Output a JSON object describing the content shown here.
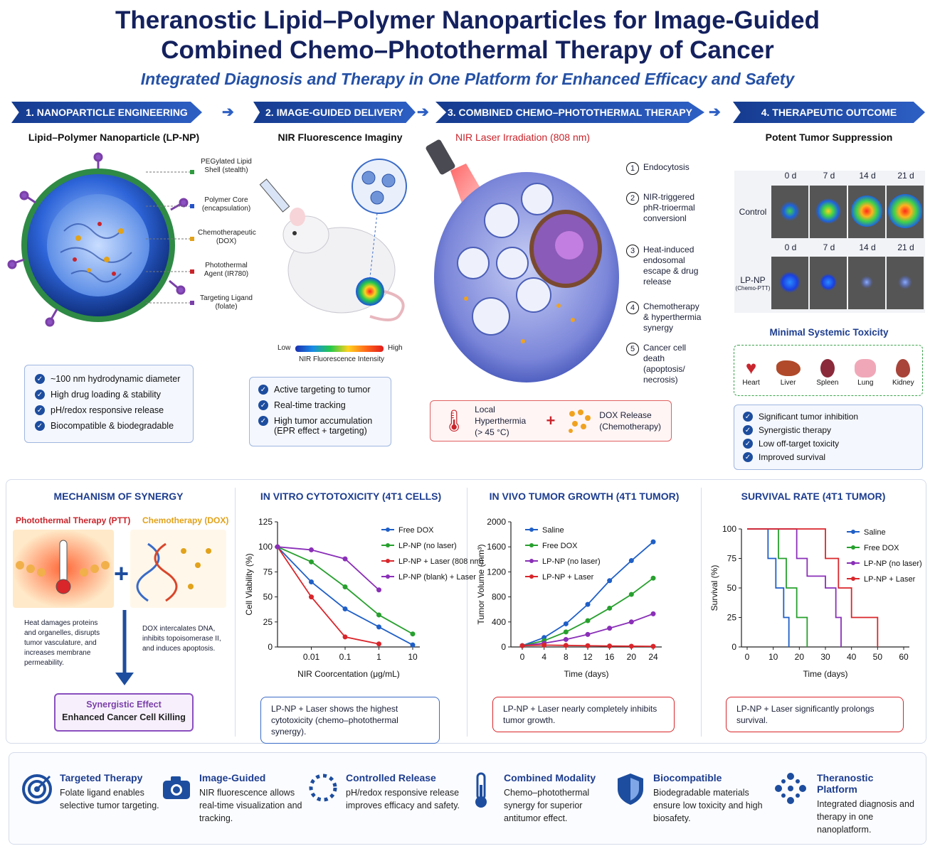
{
  "header": {
    "title_line1": "Theranostic Lipid–Polymer Nanoparticles for Image-Guided",
    "title_line2": "Combined Chemo–Photothermal Therapy of Cancer",
    "subtitle": "Integrated Diagnosis and Therapy in One Platform for Enhanced Efficacy and Safety"
  },
  "steps": [
    {
      "label": "1. NANOPARTICLE ENGINEERING"
    },
    {
      "label": "2. IMAGE-GUIDED DELIVERY"
    },
    {
      "label": "3. COMBINED CHEMO–PHOTOTHERMAL THERAPY"
    },
    {
      "label": "4. THERAPEUTIC OUTCOME"
    }
  ],
  "engineering": {
    "heading": "Lipid–Polymer Nanoparticle (LP-NP)",
    "labels": [
      {
        "text": "PEGylated Lipid Shell (stealth)",
        "color": "#2e9b3e"
      },
      {
        "text": "Polymer Core (encapsulation)",
        "color": "#2452c9"
      },
      {
        "text": "Chemotherapeutic (DOX)",
        "color": "#e2a21a"
      },
      {
        "text": "Photothermal Agent (IR780)",
        "color": "#c9242b"
      },
      {
        "text": "Targeting Ligand (folate)",
        "color": "#7a3fa8"
      }
    ],
    "features": [
      "~100 nm hydrodynamic diameter",
      "High drug loading & stability",
      "pH/redox responsive release",
      "Biocompatible & biodegradable"
    ]
  },
  "delivery": {
    "heading": "NIR Fluorescence Imaginy",
    "scale_low": "Low",
    "scale_high": "High",
    "scale_caption": "NIR Fluorescence Intensity",
    "features": [
      "Active targeting to tumor",
      "Real-time tracking",
      "High tumor accumulation (EPR effect + targeting)"
    ]
  },
  "therapy": {
    "heading": "NIR Laser Irradiation (808 nm)",
    "steps": [
      {
        "num": "1",
        "text": "Endocytosis"
      },
      {
        "num": "2",
        "text": "NIR-triggered phR-trioermal conversionl"
      },
      {
        "num": "3",
        "text": "Heat-induced endosomal escape & drug release"
      },
      {
        "num": "4",
        "text": "Chemotherapy & hyperthermia synergy"
      },
      {
        "num": "5",
        "text": "Cancer cell death (apoptosis/ necrosis)"
      }
    ],
    "hyperthermia_label": "Local Hyperthermia",
    "hyperthermia_temp": "(> 45 °C)",
    "plus": "+",
    "dox_label": "DOX Release",
    "dox_sub": "(Chemotherapy)"
  },
  "outcome": {
    "heading": "Potent Tumor Suppression",
    "days": [
      "0 d",
      "7 d",
      "14 d",
      "21 d"
    ],
    "control_label": "Control",
    "lpnp_label": "LP-NP",
    "lpnp_sub": "(Chemo-PTT)",
    "tox_heading": "Minimal Systemic Toxicity",
    "organs": [
      "Heart",
      "Liver",
      "Spleen",
      "Lung",
      "Kidney"
    ],
    "features": [
      "Significant tumor inhibition",
      "Synergistic therapy",
      "Low off-target toxicity",
      "Improved survival"
    ]
  },
  "mechanism": {
    "heading": "MECHANISM OF SYNERGY",
    "ptt_label": "Photothermal Therapy (PTT)",
    "chemo_label": "Chemotherapy (DOX)",
    "ptt_text": "Heat damages proteins and organelles, disrupts tumor vasculature, and increases membrane permeability.",
    "chemo_text": "DOX intercalates DNA, inhibits topoisomerase II, and induces apoptosis.",
    "synergy_title": "Synergistic Effect",
    "synergy_sub": "Enhanced Cancer Cell Killing"
  },
  "chart_data": [
    {
      "type": "line",
      "title": "IN VITRO CYTOTOXICITY (4T1 CELLS)",
      "xlabel": "NIR Coorcentation (μg/mL)",
      "ylabel": "Cell Viability (%)",
      "xscale": "log",
      "x": [
        0.001,
        0.01,
        0.1,
        1,
        10
      ],
      "x_ticks": [
        "0.01",
        "0.1",
        "1",
        "10"
      ],
      "y_ticks": [
        "0",
        "25",
        "50",
        "75",
        "100",
        "125"
      ],
      "ylim": [
        0,
        125
      ],
      "series": [
        {
          "name": "Free DOX",
          "color": "#1f5fc7",
          "x": [
            0.001,
            0.01,
            0.1,
            1,
            10
          ],
          "values": [
            100,
            65,
            38,
            20,
            2
          ]
        },
        {
          "name": "LP-NP (no laser)",
          "color": "#27a02e",
          "x": [
            0.001,
            0.01,
            0.1,
            1,
            10
          ],
          "values": [
            100,
            85,
            60,
            32,
            13
          ]
        },
        {
          "name": "LP-NP + Laser (808 nm)",
          "color": "#d9262b",
          "x": [
            0.001,
            0.01,
            0.1,
            1
          ],
          "values": [
            100,
            50,
            10,
            3
          ]
        },
        {
          "name": "LP-NP (blank) + Laser",
          "color": "#8a2fb8",
          "x": [
            0.001,
            0.01,
            0.1,
            1
          ],
          "values": [
            100,
            97,
            88,
            57
          ]
        }
      ],
      "note": "LP-NP + Laser shows the highest cytotoxicity (chemo–photothermal synergy)."
    },
    {
      "type": "line",
      "title": "IN VIVO TUMOR GROWTH (4T1 TUMOR)",
      "xlabel": "Time (days)",
      "ylabel": "Tumor Volume (mm³)",
      "x_ticks": [
        "0",
        "4",
        "8",
        "12",
        "16",
        "20",
        "24"
      ],
      "y_ticks": [
        "0",
        "400",
        "800",
        "1200",
        "1600",
        "2000"
      ],
      "xlim": [
        0,
        24
      ],
      "ylim": [
        0,
        2000
      ],
      "series": [
        {
          "name": "Saline",
          "color": "#1f5fc7",
          "x": [
            0,
            4,
            8,
            12,
            16,
            20,
            24
          ],
          "values": [
            20,
            150,
            370,
            680,
            1060,
            1380,
            1680
          ]
        },
        {
          "name": "Free DOX",
          "color": "#27a02e",
          "x": [
            0,
            4,
            8,
            12,
            16,
            20,
            24
          ],
          "values": [
            20,
            100,
            240,
            420,
            620,
            840,
            1100
          ]
        },
        {
          "name": "LP-NP (no laser)",
          "color": "#8a2fb8",
          "x": [
            0,
            4,
            8,
            12,
            16,
            20,
            24
          ],
          "values": [
            20,
            60,
            120,
            200,
            300,
            400,
            530
          ]
        },
        {
          "name": "LP-NP + Laser",
          "color": "#d9262b",
          "x": [
            0,
            4,
            8,
            12,
            16,
            20,
            24
          ],
          "values": [
            20,
            30,
            25,
            20,
            15,
            12,
            10
          ]
        }
      ],
      "note": "LP-NP + Laser nearly completely inhibits tumor growth."
    },
    {
      "type": "line",
      "title": "SURVIVAL RATE (4T1 TUMOR)",
      "xlabel": "Time (days)",
      "ylabel": "Survival (%)",
      "x_ticks": [
        "0",
        "10",
        "20",
        "30",
        "40",
        "50",
        "60"
      ],
      "y_ticks": [
        "0",
        "25",
        "50",
        "75",
        "100"
      ],
      "xlim": [
        0,
        60
      ],
      "ylim": [
        0,
        100
      ],
      "series": [
        {
          "name": "Saline",
          "color": "#1f5fc7",
          "x": [
            0,
            8,
            8,
            11,
            11,
            14,
            14,
            16,
            16
          ],
          "values": [
            100,
            100,
            75,
            75,
            50,
            50,
            25,
            25,
            0
          ]
        },
        {
          "name": "Free DOX",
          "color": "#27a02e",
          "x": [
            0,
            12,
            12,
            15,
            15,
            19,
            19,
            23,
            23
          ],
          "values": [
            100,
            100,
            75,
            75,
            50,
            50,
            25,
            25,
            0
          ]
        },
        {
          "name": "LP-NP (no laser)",
          "color": "#8a2fb8",
          "x": [
            0,
            19,
            19,
            23,
            23,
            30,
            30,
            34,
            34,
            36,
            36
          ],
          "values": [
            100,
            100,
            75,
            75,
            60,
            60,
            50,
            50,
            25,
            25,
            0
          ]
        },
        {
          "name": "LP-NP + Laser",
          "color": "#d9262b",
          "x": [
            0,
            30,
            30,
            35,
            35,
            40,
            40,
            50,
            50
          ],
          "values": [
            100,
            100,
            75,
            75,
            50,
            50,
            25,
            25,
            0
          ]
        }
      ],
      "note": "LP-NP + Laser significantly prolongs survival."
    }
  ],
  "footer": [
    {
      "title": "Targeted Therapy",
      "text": "Folate ligand enables selective tumor targeting.",
      "icon": "target-icon"
    },
    {
      "title": "Image-Guided",
      "text": "NIR fluorescence allows real-time visualization and tracking.",
      "icon": "camera-icon"
    },
    {
      "title": "Controlled Release",
      "text": "pH/redox responsive release improves efficacy and safety.",
      "icon": "dotted-ring-icon"
    },
    {
      "title": "Combined Modality",
      "text": "Chemo–photothermal synergy for superior antitumor effect.",
      "icon": "thermometer-icon"
    },
    {
      "title": "Biocompatible",
      "text": "Biodegradable materials ensure low toxicity and high biosafety.",
      "icon": "shield-icon"
    },
    {
      "title": "Theranostic Platform",
      "text": "Integrated diagnosis and therapy in one nanoplatform.",
      "icon": "molecule-icon"
    }
  ]
}
